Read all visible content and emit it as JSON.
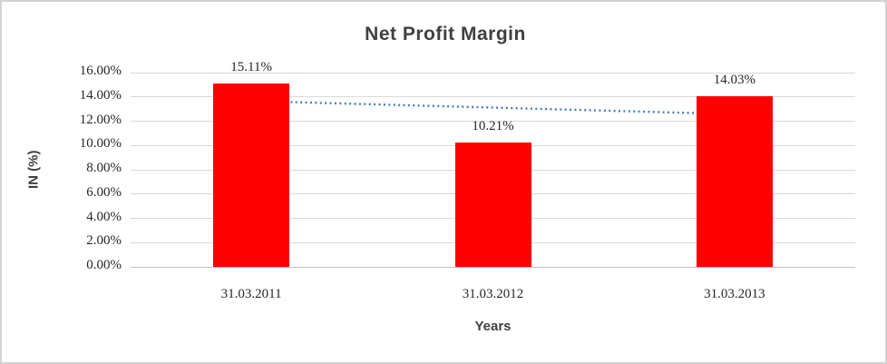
{
  "window": {
    "background_color": "#ffffff",
    "border_color": "#d2d2d2"
  },
  "chart_data": {
    "type": "bar",
    "title": "Net Profit Margin",
    "categories": [
      "31.03.2011",
      "31.03.2012",
      "31.03.2013"
    ],
    "series": [
      {
        "name": "Net Profit Margin",
        "values": [
          15.11,
          10.21,
          14.03
        ]
      }
    ],
    "data_labels": [
      "15.11%",
      "10.21%",
      "14.03%"
    ],
    "xlabel": "Years",
    "ylabel": "IN (%)",
    "ylim": [
      0,
      16
    ],
    "ytick_step": 2,
    "ytick_labels": [
      "0.00%",
      "2.00%",
      "4.00%",
      "6.00%",
      "8.00%",
      "10.00%",
      "12.00%",
      "14.00%",
      "16.00%"
    ],
    "grid": true,
    "legend": "none",
    "colors": {
      "bar": "#ff0000",
      "gridline": "#d9d9d9",
      "baseline": "#bfbfbf",
      "trendline": "#4a7ebb",
      "title_text": "#404040",
      "tick_text": "#262626"
    },
    "trendline": {
      "type": "linear",
      "style": "dotted",
      "color": "#4a7ebb",
      "start_value": 13.66,
      "end_value": 12.58
    }
  }
}
